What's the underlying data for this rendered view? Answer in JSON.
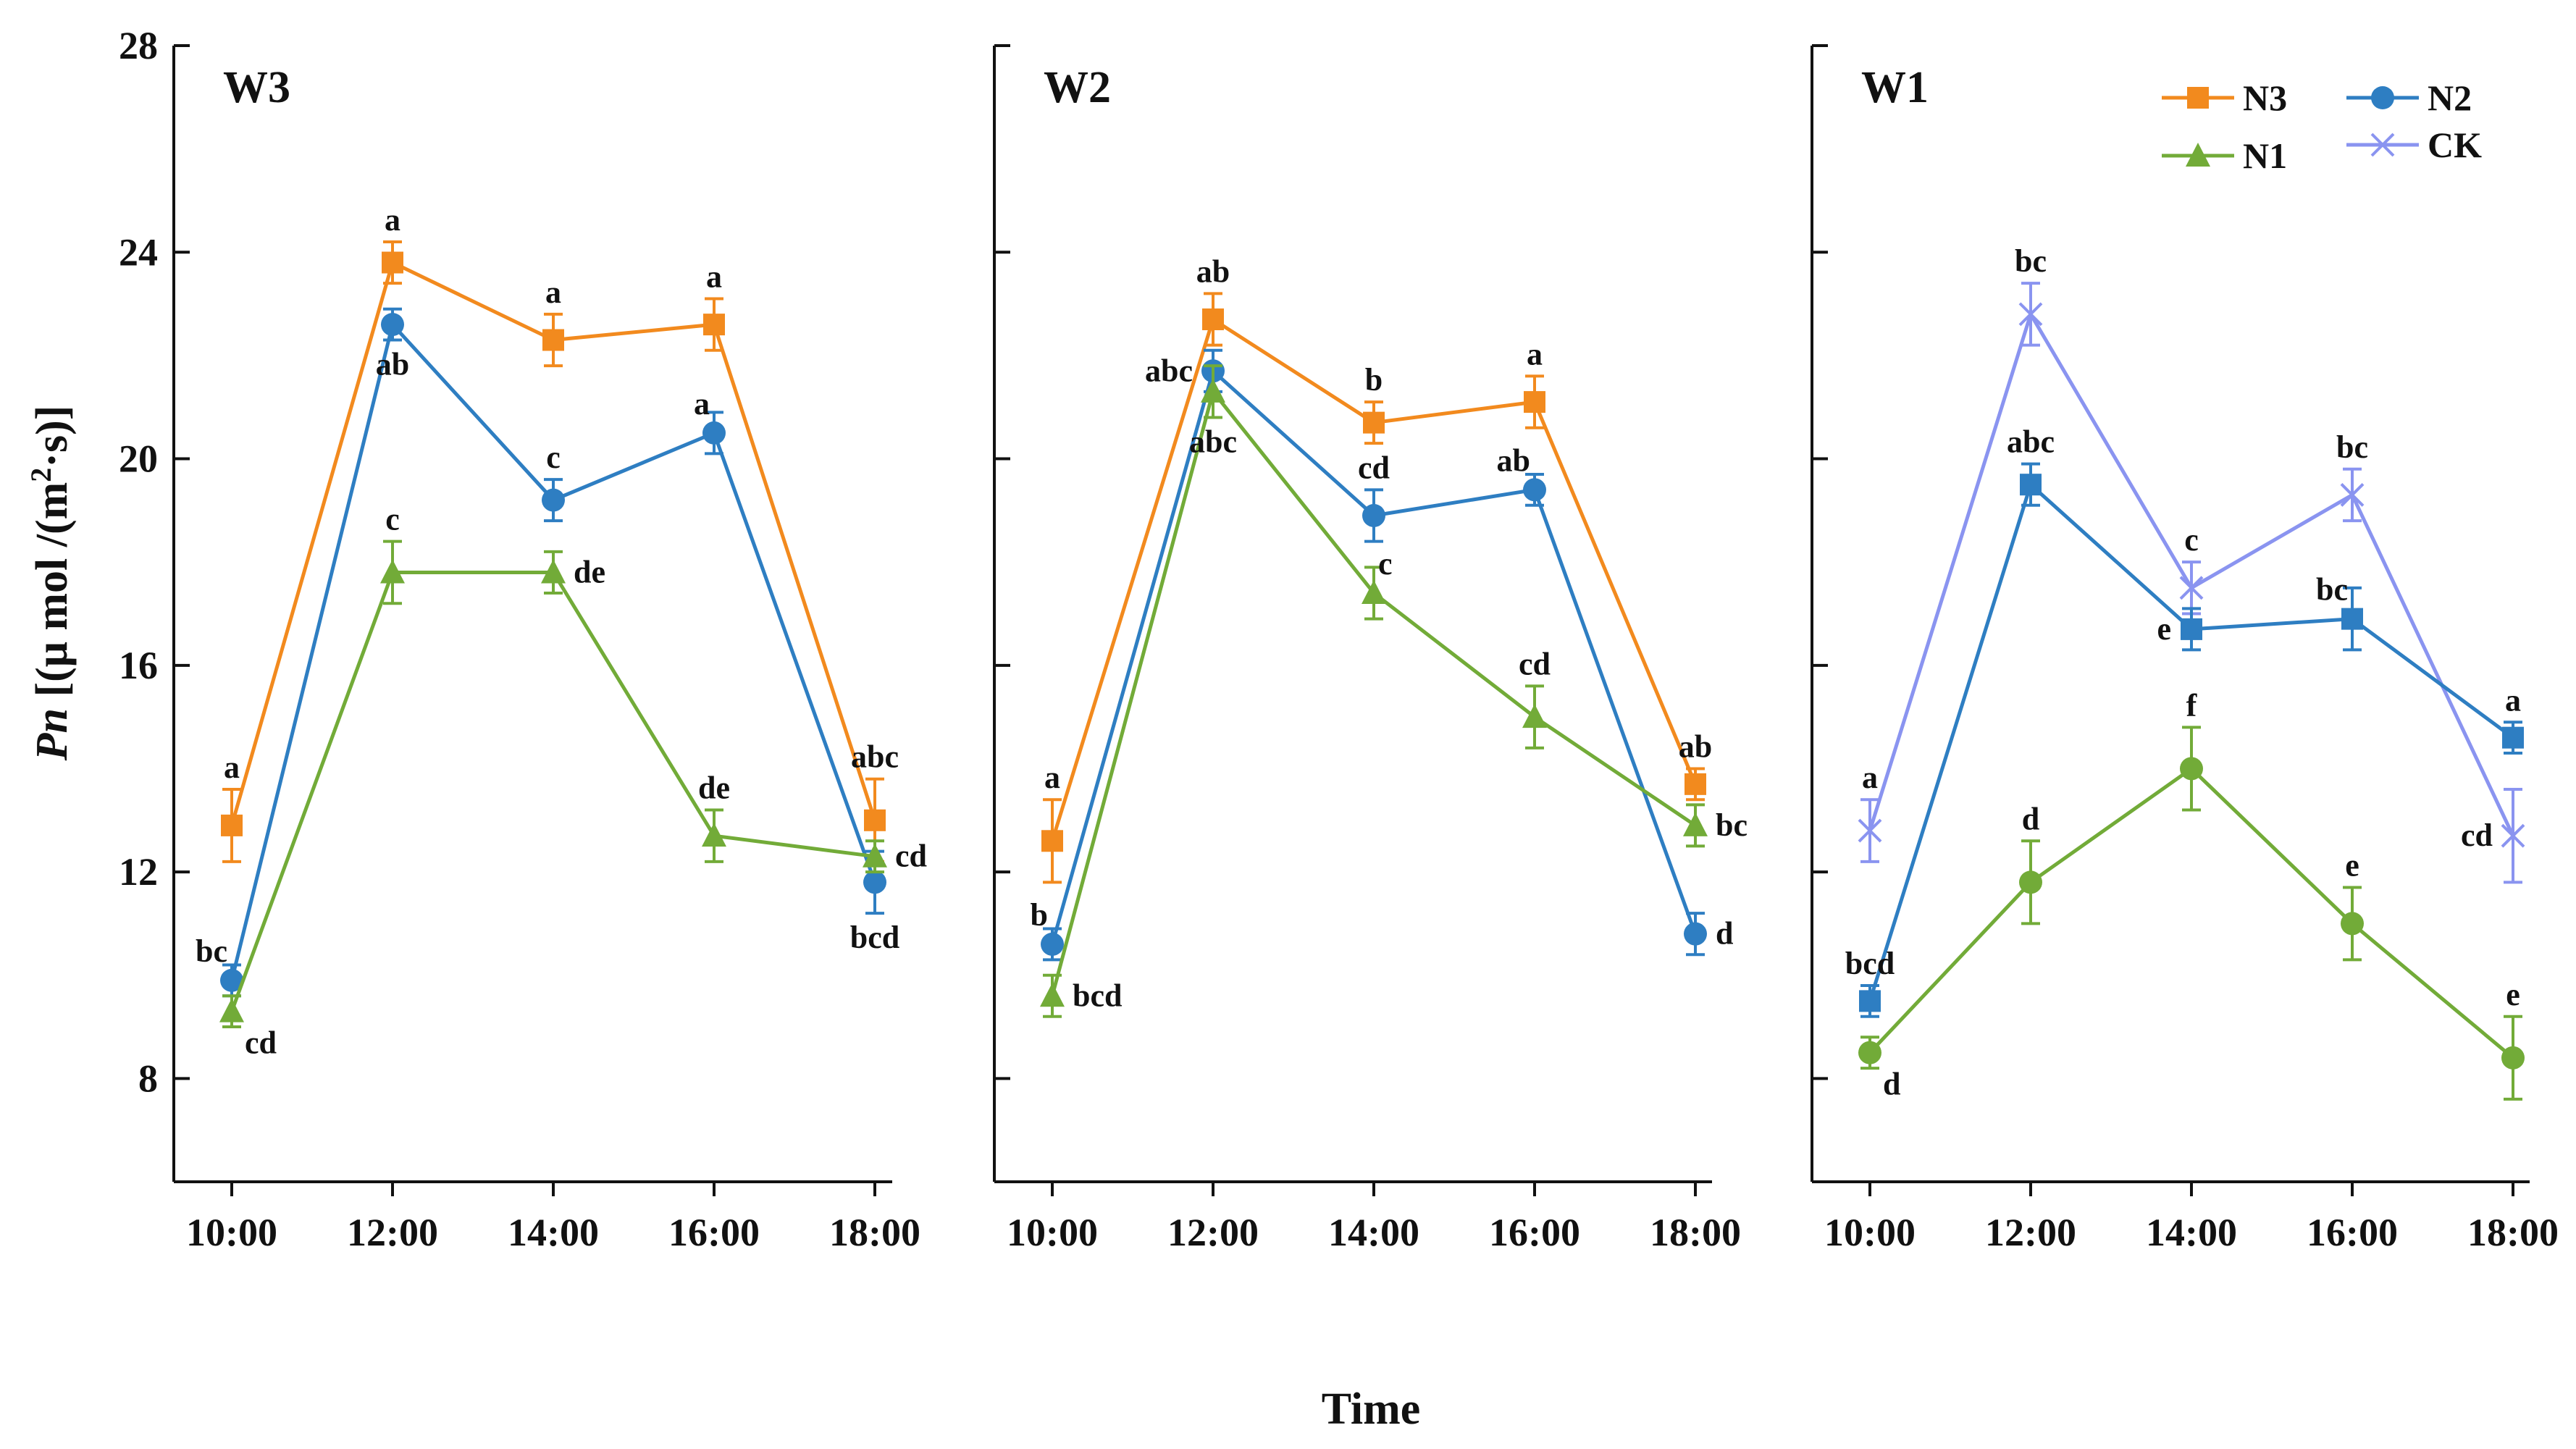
{
  "chart_data": {
    "type": "line",
    "x": [
      "10:00",
      "12:00",
      "14:00",
      "16:00",
      "18:00"
    ],
    "xlabel": "Time",
    "ylabel_italic": "Pn",
    "ylabel_rest": " [(μ mol /(m",
    "ylabel_sup": "2",
    "ylabel_end": "·s)]",
    "ylim": [
      6,
      28
    ],
    "yticks": [
      8,
      12,
      16,
      20,
      24,
      28
    ],
    "y_tick_labels": [
      "8",
      "12",
      "16",
      "20",
      "24",
      "28"
    ],
    "series_styles": {
      "N3": {
        "color": "#F28A1E",
        "marker": "square"
      },
      "N2": {
        "color": "#2E7EC2",
        "marker": "circle"
      },
      "N1": {
        "color": "#72AB38",
        "marker": "triangle"
      },
      "CK": {
        "color": "#8A94F0",
        "marker": "x"
      }
    },
    "legend": {
      "placement": "top-right",
      "entries": [
        {
          "name": "N3",
          "color": "#F28A1E",
          "marker": "square"
        },
        {
          "name": "N2",
          "color": "#2E7EC2",
          "marker": "circle"
        },
        {
          "name": "N1",
          "color": "#72AB38",
          "marker": "triangle"
        },
        {
          "name": "CK",
          "color": "#8A94F0",
          "marker": "x"
        }
      ]
    },
    "panels": [
      {
        "title": "W3",
        "series": [
          {
            "name": "N3",
            "style": "N3",
            "values": [
              12.9,
              23.8,
              22.3,
              22.6,
              13.0
            ],
            "errors": [
              0.7,
              0.4,
              0.5,
              0.5,
              0.8
            ],
            "labels": [
              {
                "text": "a",
                "pos": "above"
              },
              {
                "text": "a",
                "pos": "above"
              },
              {
                "text": "a",
                "pos": "above"
              },
              {
                "text": "a",
                "pos": "above"
              },
              {
                "text": "abc",
                "pos": "above"
              }
            ]
          },
          {
            "name": "N2",
            "style": "N2",
            "values": [
              9.9,
              22.6,
              19.2,
              20.5,
              11.8
            ],
            "errors": [
              0.3,
              0.3,
              0.4,
              0.4,
              0.6
            ],
            "labels": [
              {
                "text": "bc",
                "pos": "above-left"
              },
              {
                "text": "ab",
                "pos": "below"
              },
              {
                "text": "c",
                "pos": "above"
              },
              {
                "text": "a",
                "pos": "above-left"
              },
              {
                "text": "bcd",
                "pos": "below"
              }
            ]
          },
          {
            "name": "N1",
            "style": "N1",
            "values": [
              9.3,
              17.8,
              17.8,
              12.7,
              12.3
            ],
            "errors": [
              0.3,
              0.6,
              0.4,
              0.5,
              0.3
            ],
            "labels": [
              {
                "text": "cd",
                "pos": "below-right"
              },
              {
                "text": "c",
                "pos": "above"
              },
              {
                "text": "de",
                "pos": "right"
              },
              {
                "text": "de",
                "pos": "above"
              },
              {
                "text": "cd",
                "pos": "right"
              }
            ]
          }
        ]
      },
      {
        "title": "W2",
        "series": [
          {
            "name": "N3",
            "style": "N3",
            "values": [
              12.6,
              22.7,
              20.7,
              21.1,
              13.7
            ],
            "errors": [
              0.8,
              0.5,
              0.4,
              0.5,
              0.3
            ],
            "labels": [
              {
                "text": "a",
                "pos": "above"
              },
              {
                "text": "ab",
                "pos": "above"
              },
              {
                "text": "b",
                "pos": "above"
              },
              {
                "text": "a",
                "pos": "above"
              },
              {
                "text": "ab",
                "pos": "above"
              }
            ]
          },
          {
            "name": "N2",
            "style": "N2",
            "values": [
              10.6,
              21.7,
              18.9,
              19.4,
              10.8
            ],
            "errors": [
              0.3,
              0.4,
              0.5,
              0.3,
              0.4
            ],
            "labels": [
              {
                "text": "b",
                "pos": "above-left"
              },
              {
                "text": "abc",
                "pos": "left"
              },
              {
                "text": "cd",
                "pos": "above"
              },
              {
                "text": "ab",
                "pos": "above-left"
              },
              {
                "text": "d",
                "pos": "right"
              }
            ]
          },
          {
            "name": "N1",
            "style": "N1",
            "values": [
              9.6,
              21.3,
              17.4,
              15.0,
              12.9
            ],
            "errors": [
              0.4,
              0.5,
              0.5,
              0.6,
              0.4
            ],
            "labels": [
              {
                "text": "bcd",
                "pos": "right"
              },
              {
                "text": "abc",
                "pos": "below"
              },
              {
                "text": "c",
                "pos": "above-right"
              },
              {
                "text": "cd",
                "pos": "above"
              },
              {
                "text": "bc",
                "pos": "right"
              }
            ]
          }
        ]
      },
      {
        "title": "W1",
        "series": [
          {
            "name": "CK",
            "style": "CK",
            "values": [
              12.8,
              22.8,
              17.5,
              19.3,
              12.7
            ],
            "errors": [
              0.6,
              0.6,
              0.5,
              0.5,
              0.9
            ],
            "labels": [
              {
                "text": "a",
                "pos": "above"
              },
              {
                "text": "bc",
                "pos": "above"
              },
              {
                "text": "c",
                "pos": "above"
              },
              {
                "text": "bc",
                "pos": "above"
              },
              {
                "text": "cd",
                "pos": "left"
              }
            ]
          },
          {
            "name": "N2",
            "style": "N2",
            "marker": "square",
            "values": [
              9.5,
              19.5,
              16.7,
              16.9,
              14.6
            ],
            "errors": [
              0.3,
              0.4,
              0.4,
              0.6,
              0.3
            ],
            "labels": [
              {
                "text": "bcd",
                "pos": "above"
              },
              {
                "text": "abc",
                "pos": "above"
              },
              {
                "text": "e",
                "pos": "left"
              },
              {
                "text": "bc",
                "pos": "above-left"
              },
              {
                "text": "a",
                "pos": "above"
              }
            ]
          },
          {
            "name": "N1",
            "style": "N1",
            "marker": "circle",
            "values": [
              8.5,
              11.8,
              14.0,
              11.0,
              8.4
            ],
            "errors": [
              0.3,
              0.8,
              0.8,
              0.7,
              0.8
            ],
            "labels": [
              {
                "text": "d",
                "pos": "below-right"
              },
              {
                "text": "d",
                "pos": "above"
              },
              {
                "text": "f",
                "pos": "above"
              },
              {
                "text": "e",
                "pos": "above"
              },
              {
                "text": "e",
                "pos": "above"
              }
            ]
          }
        ]
      }
    ]
  }
}
